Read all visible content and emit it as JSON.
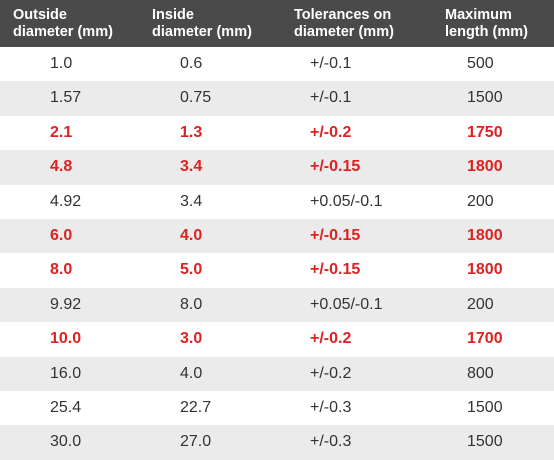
{
  "headers": [
    "Outside\ndiameter (mm)",
    "Inside\ndiameter (mm)",
    "Tolerances on\ndiameter (mm)",
    "Maximum\nlength (mm)"
  ],
  "rows": [
    {
      "outside": "1.0",
      "inside": "0.6",
      "tolerance": "+/-0.1",
      "max_length": "500",
      "highlighted": false
    },
    {
      "outside": "1.57",
      "inside": "0.75",
      "tolerance": "+/-0.1",
      "max_length": "1500",
      "highlighted": false
    },
    {
      "outside": "2.1",
      "inside": "1.3",
      "tolerance": "+/-0.2",
      "max_length": "1750",
      "highlighted": true
    },
    {
      "outside": "4.8",
      "inside": "3.4",
      "tolerance": "+/-0.15",
      "max_length": "1800",
      "highlighted": true
    },
    {
      "outside": "4.92",
      "inside": "3.4",
      "tolerance": "+0.05/-0.1",
      "max_length": "200",
      "highlighted": false
    },
    {
      "outside": "6.0",
      "inside": "4.0",
      "tolerance": "+/-0.15",
      "max_length": "1800",
      "highlighted": true
    },
    {
      "outside": "8.0",
      "inside": "5.0",
      "tolerance": "+/-0.15",
      "max_length": "1800",
      "highlighted": true
    },
    {
      "outside": "9.92",
      "inside": "8.0",
      "tolerance": "+0.05/-0.1",
      "max_length": "200",
      "highlighted": false
    },
    {
      "outside": "10.0",
      "inside": "3.0",
      "tolerance": "+/-0.2",
      "max_length": "1700",
      "highlighted": true
    },
    {
      "outside": "16.0",
      "inside": "4.0",
      "tolerance": "+/-0.2",
      "max_length": "800",
      "highlighted": false
    },
    {
      "outside": "25.4",
      "inside": "22.7",
      "tolerance": "+/-0.3",
      "max_length": "1500",
      "highlighted": false
    },
    {
      "outside": "30.0",
      "inside": "27.0",
      "tolerance": "+/-0.3",
      "max_length": "1500",
      "highlighted": false
    }
  ],
  "colors": {
    "header_background": "#4a4a4a",
    "header_text": "#ffffff",
    "highlight_text": "#dd2222",
    "normal_text": "#333333",
    "alt_row_background": "#ebebeb"
  }
}
